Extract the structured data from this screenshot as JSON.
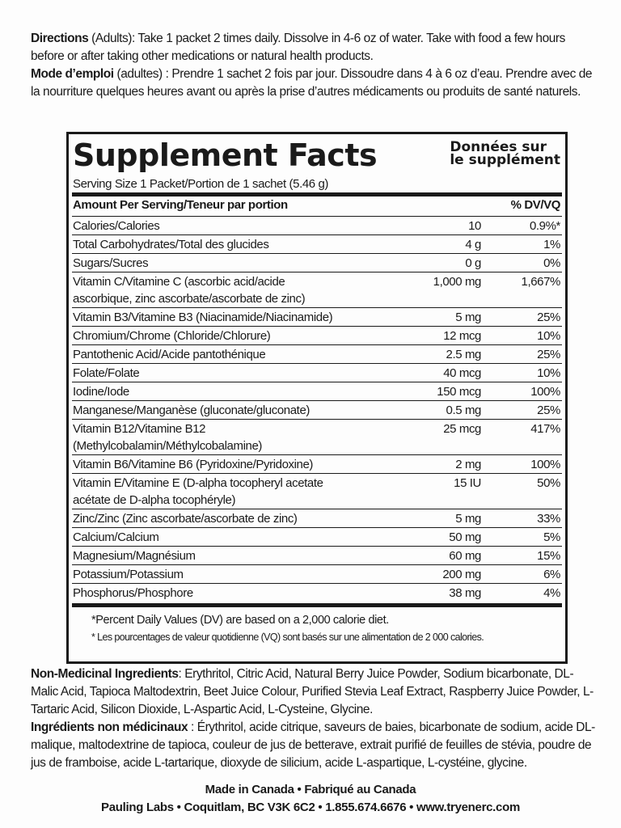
{
  "directions": {
    "en_label": "Directions",
    "en_text": " (Adults): Take 1 packet 2 times daily. Dissolve in 4-6 oz of water. Take with food a few hours before or after taking other medications or natural health products.",
    "fr_label": "Mode d’emploi",
    "fr_text": " (adultes) : Prendre 1 sachet 2 fois par jour. Dissoudre dans 4 à 6 oz d’eau. Prendre avec de la nourriture quelques heures avant ou après la prise d’autres médicaments ou produits de santé naturels."
  },
  "facts": {
    "title": "Supplement Facts",
    "title_fr_1": "Données sur",
    "title_fr_2": "le supplément",
    "serving": "Serving Size 1 Packet/Portion de 1 sachet (5.46 g)",
    "header_amount": "Amount Per Serving/Teneur par portion",
    "header_dv": "% DV/VQ",
    "rows": [
      {
        "name": "Calories/Calories",
        "amount": "10",
        "dv": "0.9%*"
      },
      {
        "name": "Total Carbohydrates/Total des glucides",
        "amount": "4 g",
        "dv": "1%"
      },
      {
        "name": "Sugars/Sucres",
        "amount": "0 g",
        "dv": "0%"
      },
      {
        "name": "Vitamin C/Vitamine C (ascorbic acid/acide\nascorbique, zinc ascorbate/ascorbate de zinc)",
        "amount": "1,000 mg",
        "dv": "1,667%"
      },
      {
        "name": "Vitamin B3/Vitamine B3 (Niacinamide/Niacinamide)",
        "amount": "5 mg",
        "dv": "25%"
      },
      {
        "name": "Chromium/Chrome (Chloride/Chlorure)",
        "amount": "12 mcg",
        "dv": "10%"
      },
      {
        "name": "Pantothenic Acid/Acide pantothénique",
        "amount": "2.5 mg",
        "dv": "25%"
      },
      {
        "name": "Folate/Folate",
        "amount": "40 mcg",
        "dv": "10%"
      },
      {
        "name": "Iodine/Iode",
        "amount": "150 mcg",
        "dv": "100%"
      },
      {
        "name": "Manganese/Manganèse (gluconate/gluconate)",
        "amount": "0.5 mg",
        "dv": "25%"
      },
      {
        "name": "Vitamin B12/Vitamine B12\n(Methylcobalamin/Méthylcobalamine)",
        "amount": "25 mcg",
        "dv": "417%"
      },
      {
        "name": "Vitamin B6/Vitamine B6 (Pyridoxine/Pyridoxine)",
        "amount": "2 mg",
        "dv": "100%"
      },
      {
        "name": "Vitamin E/Vitamine E (D-alpha tocopheryl acetate\n    acétate de D-alpha tocophéryle)",
        "amount": "15 IU",
        "dv": "50%"
      },
      {
        "name": "Zinc/Zinc (Zinc ascorbate/ascorbate de zinc)",
        "amount": "5 mg",
        "dv": "33%"
      },
      {
        "name": "Calcium/Calcium",
        "amount": "50 mg",
        "dv": "5%"
      },
      {
        "name": "Magnesium/Magnésium",
        "amount": "60 mg",
        "dv": "15%"
      },
      {
        "name": "Potassium/Potassium",
        "amount": "200 mg",
        "dv": "6%"
      },
      {
        "name": "Phosphorus/Phosphore",
        "amount": "38 mg",
        "dv": "4%"
      }
    ],
    "footnote_en": "*Percent Daily Values (DV) are based on a 2,000 calorie diet.",
    "footnote_fr": "* Les pourcentages de valeur quotidienne (VQ) sont basés sur une alimentation de 2 000 calories."
  },
  "ingredients": {
    "en_label": "Non-Medicinal Ingredients",
    "en_text": ": Erythritol, Citric Acid, Natural Berry Juice Powder, Sodium bicarbonate, DL-Malic Acid, Tapioca Maltodextrin, Beet Juice Colour, Purified Stevia Leaf Extract, Raspberry Juice Powder, L-Tartaric Acid, Silicon Dioxide, L-Aspartic Acid, L-Cysteine, Glycine.",
    "fr_label": "Ingrédients non médicinaux",
    "fr_text": " : Érythritol, acide citrique, saveurs de baies, bicarbonate de sodium, acide DL-malique, maltodextrine de tapioca, couleur de jus de betterave, extrait purifié de feuilles de stévia, poudre de jus de framboise, acide L-tartarique, dioxyde de silicium, acide L-aspartique, L-cystéine, glycine."
  },
  "footer": {
    "made_in": "Made in Canada • Fabriqué au Canada",
    "company": "Pauling Labs • Coquitlam, BC  V3K 6C2 • 1.855.674.6676 • www.tryenerc.com"
  }
}
